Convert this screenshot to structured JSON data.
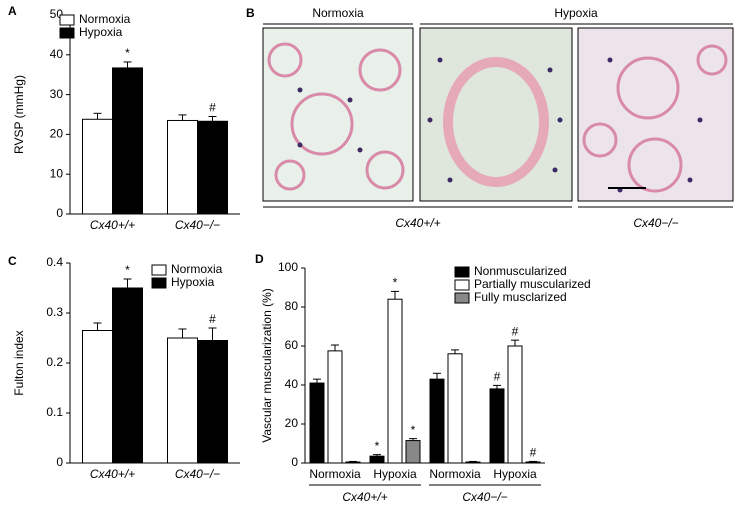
{
  "chart_data": [
    {
      "type": "bar",
      "panel": "A",
      "y_label": "RVSP (mmHg)",
      "categories": [
        "Cx40+/+",
        "Cx40−/−"
      ],
      "series": [
        {
          "name": "Normoxia",
          "color": "#ffffff",
          "values": [
            23.8,
            23.5
          ],
          "errors": [
            1.5,
            1.4
          ],
          "markers": [
            null,
            null
          ]
        },
        {
          "name": "Hypoxia",
          "color": "#000000",
          "values": [
            36.7,
            23.3
          ],
          "errors": [
            1.5,
            1.2
          ],
          "markers": [
            "*",
            "#"
          ]
        }
      ],
      "ylim": [
        0,
        50
      ],
      "yticks": [
        0,
        10,
        20,
        30,
        40,
        50
      ],
      "legend": "top-left"
    },
    {
      "type": "bar",
      "panel": "C",
      "y_label": "Fulton index",
      "categories": [
        "Cx40+/+",
        "Cx40−/−"
      ],
      "series": [
        {
          "name": "Normoxia",
          "color": "#ffffff",
          "values": [
            0.265,
            0.25
          ],
          "errors": [
            0.015,
            0.018
          ],
          "markers": [
            null,
            null
          ]
        },
        {
          "name": "Hypoxia",
          "color": "#000000",
          "values": [
            0.35,
            0.245
          ],
          "errors": [
            0.018,
            0.025
          ],
          "markers": [
            "*",
            "#"
          ]
        }
      ],
      "ylim": [
        0,
        0.4
      ],
      "yticks": [
        0,
        0.1,
        0.2,
        0.3,
        0.4
      ],
      "legend": "top-right"
    },
    {
      "type": "bar",
      "panel": "D",
      "y_label": "Vascular muscularization (%)",
      "categories": [
        "Normoxia",
        "Hypoxia",
        "Normoxia",
        "Hypoxia"
      ],
      "groups": [
        "Cx40+/+",
        "Cx40−/−"
      ],
      "series": [
        {
          "name": "Nonmuscularized",
          "color": "#000000",
          "values": [
            41,
            3.5,
            43,
            38
          ],
          "errors": [
            2,
            0.8,
            3,
            1.8
          ],
          "markers": [
            null,
            "*",
            null,
            "#"
          ]
        },
        {
          "name": "Partially muscularized",
          "color": "#ffffff",
          "values": [
            57.5,
            84,
            56,
            60
          ],
          "errors": [
            3,
            4,
            2,
            3
          ],
          "markers": [
            null,
            "*",
            null,
            "#"
          ]
        },
        {
          "name": "Fully musclarized",
          "color": "#888888",
          "values": [
            0.5,
            11.5,
            0.5,
            0.5
          ],
          "errors": [
            0.3,
            1,
            0.3,
            0.3
          ],
          "markers": [
            null,
            "*",
            null,
            "#"
          ]
        }
      ],
      "ylim": [
        0,
        100
      ],
      "yticks": [
        0,
        20,
        40,
        60,
        80,
        100
      ],
      "legend": "top-right"
    }
  ],
  "panel_b": {
    "panel": "B",
    "header": [
      "Normoxia",
      "Hypoxia"
    ],
    "footer": [
      "Cx40+/+",
      "Cx40−/−"
    ]
  }
}
